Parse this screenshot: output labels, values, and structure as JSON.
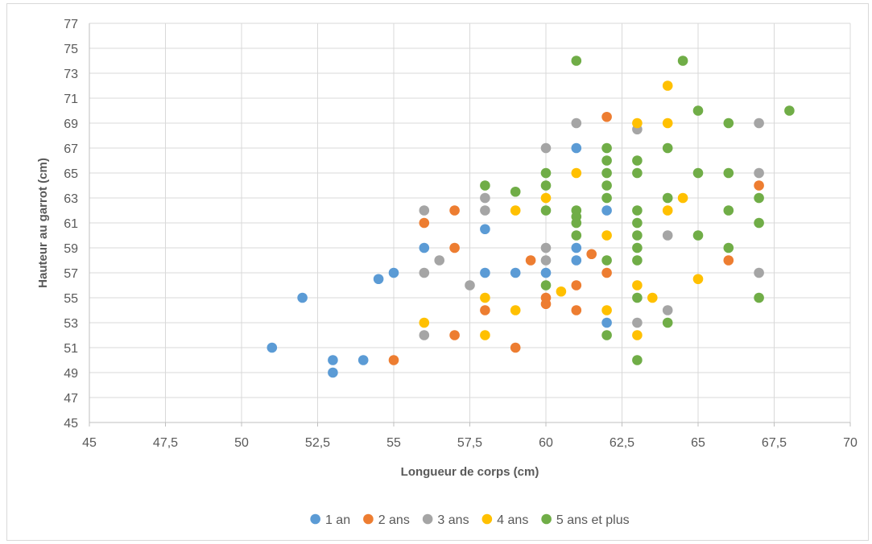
{
  "chart_data": {
    "type": "scatter",
    "xlabel": "Longueur de corps (cm)",
    "ylabel": "Hauteur au garrot (cm)",
    "xlim": [
      45,
      70
    ],
    "ylim": [
      45,
      77
    ],
    "xticks": [
      "45",
      "47,5",
      "50",
      "52,5",
      "55",
      "57,5",
      "60",
      "62,5",
      "65",
      "67,5",
      "70"
    ],
    "yticks": [
      "45",
      "47",
      "49",
      "51",
      "53",
      "55",
      "57",
      "59",
      "61",
      "63",
      "65",
      "67",
      "69",
      "71",
      "73",
      "75",
      "77"
    ],
    "grid": true,
    "legend_position": "bottom",
    "series": [
      {
        "name": "1 an",
        "color": "#5b9bd5",
        "points": [
          [
            51,
            51
          ],
          [
            52,
            55
          ],
          [
            53,
            50
          ],
          [
            53,
            49
          ],
          [
            54,
            50
          ],
          [
            54.5,
            56.5
          ],
          [
            55,
            57
          ],
          [
            56,
            59
          ],
          [
            58,
            60.5
          ],
          [
            58,
            57
          ],
          [
            59,
            57
          ],
          [
            60,
            57
          ],
          [
            61,
            67
          ],
          [
            61,
            59
          ],
          [
            61,
            58
          ],
          [
            62,
            62
          ],
          [
            62,
            53
          ]
        ]
      },
      {
        "name": "2 ans",
        "color": "#ed7d31",
        "points": [
          [
            55,
            50
          ],
          [
            56,
            61
          ],
          [
            57,
            62
          ],
          [
            57,
            59
          ],
          [
            57,
            52
          ],
          [
            58,
            54
          ],
          [
            59,
            51
          ],
          [
            59.5,
            58
          ],
          [
            60,
            55
          ],
          [
            60,
            54.5
          ],
          [
            61,
            56
          ],
          [
            61,
            54
          ],
          [
            61.5,
            58.5
          ],
          [
            62,
            69.5
          ],
          [
            62,
            57
          ],
          [
            66,
            58
          ],
          [
            67,
            64
          ]
        ]
      },
      {
        "name": "3 ans",
        "color": "#a5a5a5",
        "points": [
          [
            56,
            62
          ],
          [
            56,
            57
          ],
          [
            56,
            52
          ],
          [
            56.5,
            58
          ],
          [
            57.5,
            56
          ],
          [
            58,
            63
          ],
          [
            58,
            62
          ],
          [
            60,
            67
          ],
          [
            60,
            59
          ],
          [
            60,
            58
          ],
          [
            61,
            69
          ],
          [
            63,
            68.5
          ],
          [
            63,
            53
          ],
          [
            64,
            60
          ],
          [
            64,
            54
          ],
          [
            67,
            69
          ],
          [
            67,
            65
          ],
          [
            67,
            57
          ]
        ]
      },
      {
        "name": "4 ans",
        "color": "#ffc000",
        "points": [
          [
            56,
            53
          ],
          [
            58,
            55
          ],
          [
            58,
            52
          ],
          [
            59,
            62
          ],
          [
            59,
            54
          ],
          [
            60,
            63
          ],
          [
            60.5,
            55.5
          ],
          [
            61,
            65
          ],
          [
            62,
            60
          ],
          [
            62,
            54
          ],
          [
            63,
            69
          ],
          [
            63,
            56
          ],
          [
            63,
            52
          ],
          [
            63.5,
            55
          ],
          [
            64,
            72
          ],
          [
            64,
            69
          ],
          [
            64,
            62
          ],
          [
            64.5,
            63
          ],
          [
            65,
            56.5
          ]
        ]
      },
      {
        "name": "5 ans et plus",
        "color": "#70ad47",
        "points": [
          [
            58,
            64
          ],
          [
            59,
            63.5
          ],
          [
            60,
            65
          ],
          [
            60,
            64
          ],
          [
            60,
            62
          ],
          [
            60,
            56
          ],
          [
            61,
            74
          ],
          [
            61,
            62
          ],
          [
            61,
            61.5
          ],
          [
            61,
            61
          ],
          [
            61,
            60
          ],
          [
            62,
            67
          ],
          [
            62,
            66
          ],
          [
            62,
            65
          ],
          [
            62,
            64
          ],
          [
            62,
            63
          ],
          [
            62,
            58
          ],
          [
            62,
            52
          ],
          [
            63,
            66
          ],
          [
            63,
            65
          ],
          [
            63,
            62
          ],
          [
            63,
            61
          ],
          [
            63,
            60
          ],
          [
            63,
            59
          ],
          [
            63,
            58
          ],
          [
            63,
            55
          ],
          [
            63,
            50
          ],
          [
            64,
            67
          ],
          [
            64,
            63
          ],
          [
            64,
            53
          ],
          [
            64.5,
            74
          ],
          [
            65,
            70
          ],
          [
            65,
            65
          ],
          [
            65,
            60
          ],
          [
            66,
            69
          ],
          [
            66,
            65
          ],
          [
            66,
            62
          ],
          [
            66,
            59
          ],
          [
            67,
            63
          ],
          [
            67,
            61
          ],
          [
            67,
            55
          ],
          [
            68,
            70
          ]
        ]
      }
    ]
  }
}
